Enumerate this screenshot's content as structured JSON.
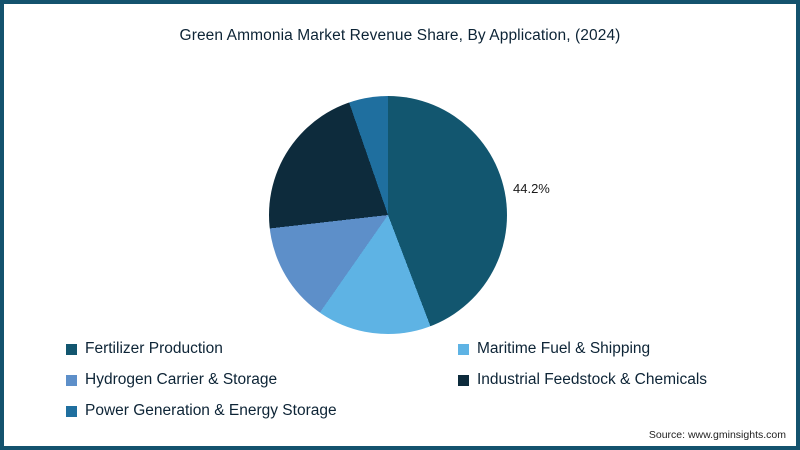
{
  "page": {
    "source": "Source: www.gminsights.com"
  },
  "chart_data": {
    "type": "pie",
    "title": "Green Ammonia Market Revenue Share, By Application, (2024)",
    "start_angle_deg": 0,
    "direction": "clockwise",
    "legend_position": "bottom",
    "legend_columns": 2,
    "labeled_slice": {
      "label": "Fertilizer Production",
      "value_label": "44.2%"
    },
    "slices": [
      {
        "label": "Fertilizer Production",
        "value": 44.2,
        "color": "#12566f"
      },
      {
        "label": "Maritime Fuel & Shipping",
        "value": 15.5,
        "color": "#5eb3e4"
      },
      {
        "label": "Hydrogen Carrier & Storage",
        "value": 13.5,
        "color": "#5d8fc9"
      },
      {
        "label": "Industrial Feedstock & Chemicals",
        "value": 21.5,
        "color": "#0d2b3c"
      },
      {
        "label": "Power Generation & Energy Storage",
        "value": 5.3,
        "color": "#1f6f9f"
      }
    ]
  }
}
